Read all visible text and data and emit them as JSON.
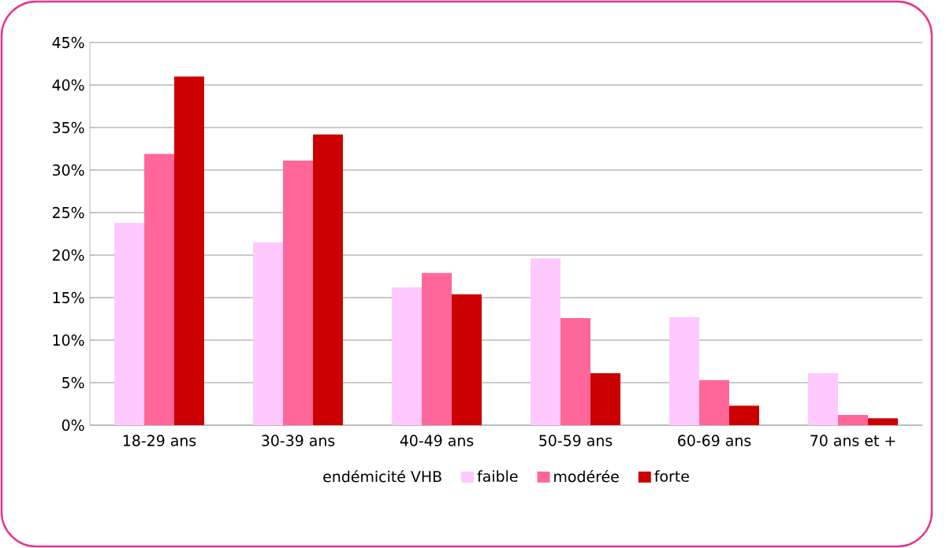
{
  "chart_data": {
    "type": "bar",
    "categories": [
      "18-29 ans",
      "30-39 ans",
      "40-49 ans",
      "50-59 ans",
      "60-69 ans",
      "70 ans et +"
    ],
    "legend_title": "endémicité VHB",
    "series": [
      {
        "name": "faible",
        "color": "#ffc8ff",
        "values": [
          23.8,
          21.5,
          16.2,
          19.6,
          12.7,
          6.1
        ]
      },
      {
        "name": "modérée",
        "color": "#ff6699",
        "values": [
          31.9,
          31.1,
          17.9,
          12.6,
          5.3,
          1.2
        ]
      },
      {
        "name": "forte",
        "color": "#cc0000",
        "values": [
          41.0,
          34.2,
          15.4,
          6.1,
          2.3,
          0.8
        ]
      }
    ],
    "ylim": [
      0,
      45
    ],
    "yticks": [
      {
        "value": 0,
        "label": "0%"
      },
      {
        "value": 5,
        "label": "5%"
      },
      {
        "value": 10,
        "label": "10%"
      },
      {
        "value": 15,
        "label": "15%"
      },
      {
        "value": 20,
        "label": "20%"
      },
      {
        "value": 25,
        "label": "25%"
      },
      {
        "value": 30,
        "label": "30%"
      },
      {
        "value": 35,
        "label": "35%"
      },
      {
        "value": 40,
        "label": "40%"
      },
      {
        "value": 45,
        "label": "45%"
      }
    ],
    "grid": "y",
    "legend": "bottom"
  }
}
